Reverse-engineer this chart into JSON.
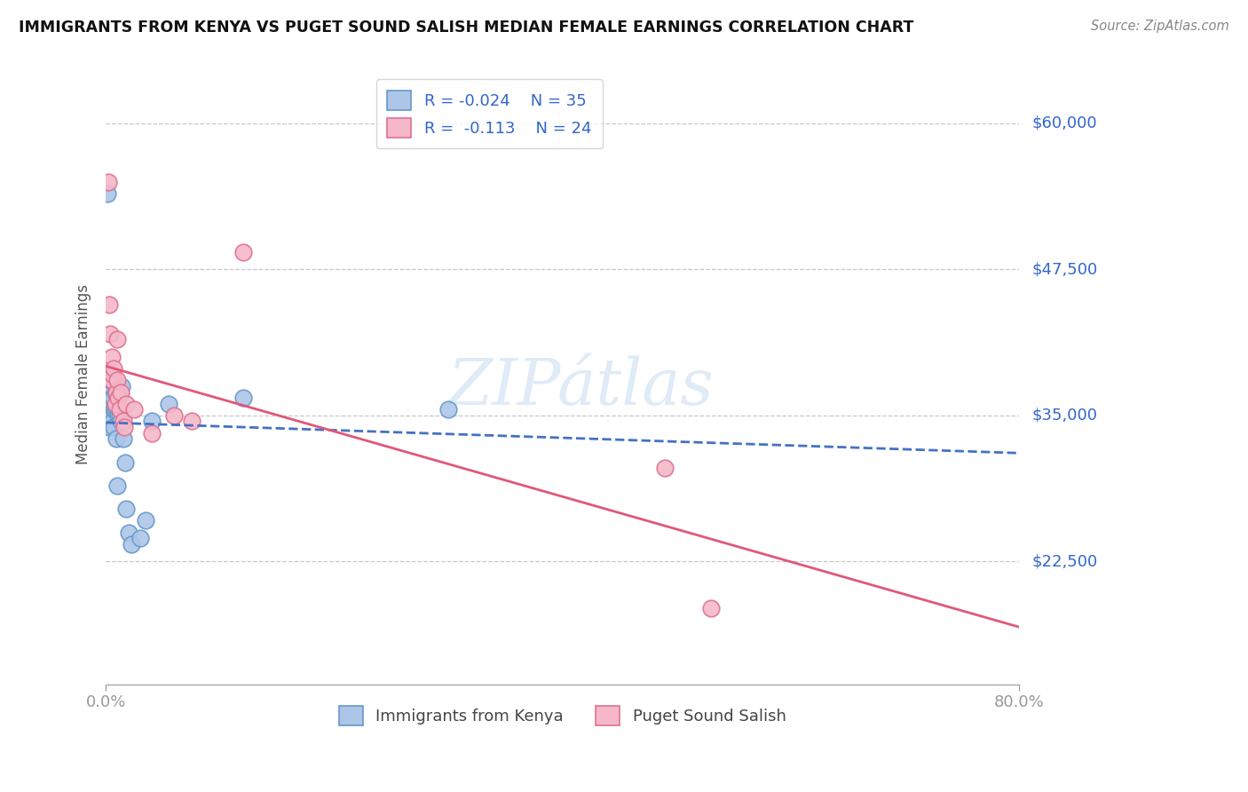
{
  "title": "IMMIGRANTS FROM KENYA VS PUGET SOUND SALISH MEDIAN FEMALE EARNINGS CORRELATION CHART",
  "source": "Source: ZipAtlas.com",
  "ylabel": "Median Female Earnings",
  "xlim": [
    0.0,
    0.8
  ],
  "ylim": [
    12000,
    65000
  ],
  "ytick_vals": [
    22500,
    35000,
    47500,
    60000
  ],
  "ytick_labels": [
    "$22,500",
    "$35,000",
    "$47,500",
    "$60,000"
  ],
  "background_color": "#ffffff",
  "grid_color": "#c8c8c8",
  "series1_color": "#adc6e8",
  "series1_border": "#6699cc",
  "series2_color": "#f5b8c8",
  "series2_border": "#e07090",
  "line1_color": "#4472c4",
  "line2_color": "#e05878",
  "legend_R1": "-0.024",
  "legend_N1": "35",
  "legend_R2": "-0.113",
  "legend_N2": "24",
  "legend_label1": "Immigrants from Kenya",
  "legend_label2": "Puget Sound Salish",
  "series1_x": [
    0.001,
    0.002,
    0.003,
    0.003,
    0.004,
    0.004,
    0.005,
    0.005,
    0.006,
    0.006,
    0.006,
    0.007,
    0.007,
    0.008,
    0.008,
    0.009,
    0.009,
    0.01,
    0.01,
    0.011,
    0.011,
    0.012,
    0.013,
    0.014,
    0.015,
    0.017,
    0.018,
    0.02,
    0.022,
    0.03,
    0.035,
    0.04,
    0.055,
    0.12,
    0.3
  ],
  "series1_y": [
    54000,
    36000,
    37500,
    34000,
    38000,
    35500,
    36500,
    35000,
    36000,
    34500,
    36500,
    35500,
    34000,
    37000,
    35500,
    36000,
    33000,
    35500,
    29000,
    35000,
    37000,
    35000,
    34500,
    37500,
    33000,
    31000,
    27000,
    25000,
    24000,
    24500,
    26000,
    34500,
    36000,
    36500,
    35500
  ],
  "series2_x": [
    0.002,
    0.003,
    0.004,
    0.005,
    0.005,
    0.006,
    0.007,
    0.008,
    0.009,
    0.01,
    0.01,
    0.011,
    0.012,
    0.013,
    0.015,
    0.016,
    0.018,
    0.025,
    0.04,
    0.06,
    0.075,
    0.12,
    0.49,
    0.53
  ],
  "series2_y": [
    55000,
    44500,
    42000,
    40000,
    38000,
    38500,
    39000,
    36000,
    37000,
    38000,
    41500,
    36500,
    35500,
    37000,
    34500,
    34000,
    36000,
    35500,
    33500,
    35000,
    34500,
    49000,
    30500,
    18500
  ]
}
